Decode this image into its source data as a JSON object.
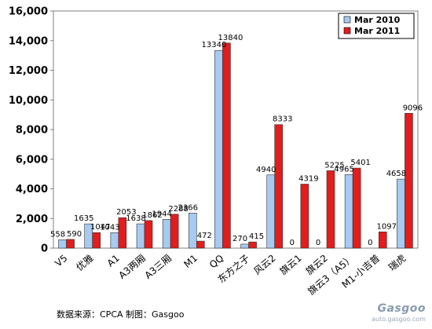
{
  "chart_data": {
    "type": "bar",
    "categories": [
      "V5",
      "优雅",
      "A1",
      "A3两厢",
      "A3三厢",
      "M1",
      "QQ",
      "东方之子",
      "风云2",
      "旗云1",
      "旗云2",
      "旗云3（A5）",
      "M1-小吉普",
      "瑞虎"
    ],
    "series": [
      {
        "name": "Mar 2010",
        "color": "#a6caf0",
        "values": [
          558,
          1635,
          1043,
          1638,
          1944,
          2366,
          13340,
          270,
          4940,
          0,
          0,
          4965,
          0,
          4658
        ],
        "labels": [
          "558",
          "1635",
          "1043",
          "1638",
          "1944",
          "2366",
          "13340",
          "270",
          "4940",
          "0",
          "0",
          "4965",
          "0",
          "4658"
        ]
      },
      {
        "name": "Mar 2011",
        "color": "#e31c1c",
        "values": [
          590,
          1047,
          2053,
          1862,
          2288,
          472,
          13840,
          415,
          8333,
          4319,
          5225,
          5401,
          1097,
          9096
        ],
        "labels": [
          "590",
          "1047",
          "2053",
          "1862",
          "2288",
          "472",
          "13840",
          "415",
          "8333",
          "4319",
          "5225",
          "5401",
          "1097",
          "9096"
        ]
      }
    ],
    "ylim": [
      0,
      16000
    ],
    "yticks": [
      "0",
      "2,000",
      "4,000",
      "6,000",
      "8,000",
      "10,000",
      "12,000",
      "14,000",
      "16,000"
    ],
    "ytick_values": [
      0,
      2000,
      4000,
      6000,
      8000,
      10000,
      12000,
      14000,
      16000
    ],
    "legend_placement": "top-right",
    "grid": false
  },
  "source_note": "数据来源：CPCA  制图：Gasgoo",
  "watermark": {
    "logo": "Gasgoo",
    "url": "auto.gasgoo.com"
  }
}
